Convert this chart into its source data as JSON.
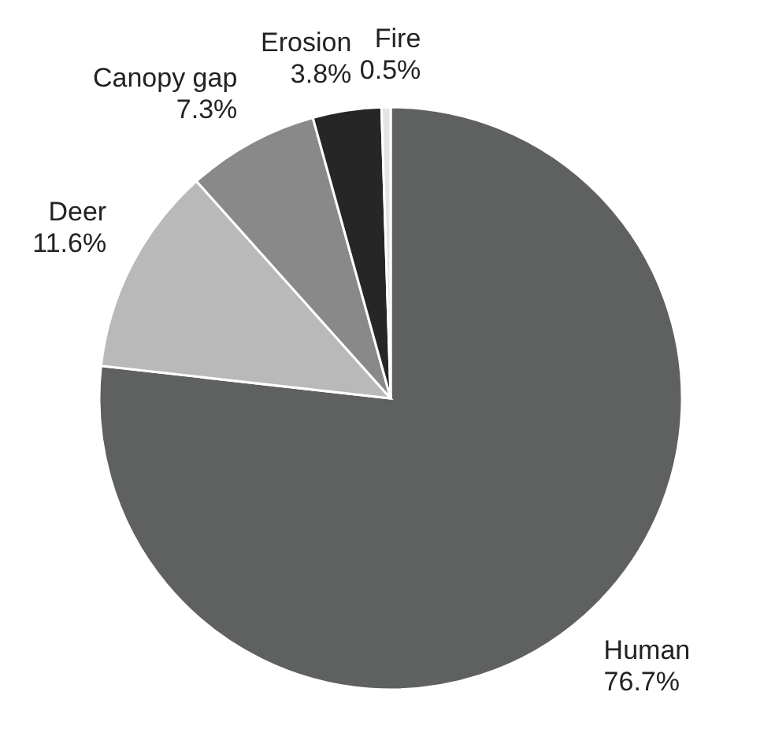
{
  "chart_data": {
    "type": "pie",
    "categories": [
      "Human",
      "Deer",
      "Canopy gap",
      "Erosion",
      "Fire"
    ],
    "values": [
      76.7,
      11.6,
      7.3,
      3.8,
      0.5
    ],
    "colors": [
      "#5f6060",
      "#b9b9b9",
      "#898989",
      "#262626",
      "#e4e4e4"
    ],
    "value_labels": [
      "76.7%",
      "11.6%",
      "7.3%",
      "3.8%",
      "0.5%"
    ]
  }
}
